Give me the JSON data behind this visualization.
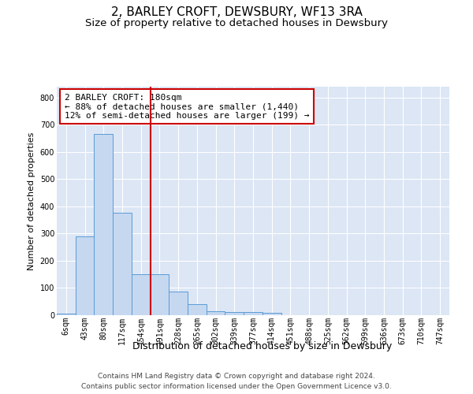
{
  "title": "2, BARLEY CROFT, DEWSBURY, WF13 3RA",
  "subtitle": "Size of property relative to detached houses in Dewsbury",
  "xlabel": "Distribution of detached houses by size in Dewsbury",
  "ylabel": "Number of detached properties",
  "bar_color": "#c5d8f0",
  "bar_edge_color": "#5b9bd5",
  "vline_color": "#cc0000",
  "vline_x": 4.5,
  "annotation_text": "2 BARLEY CROFT: 180sqm\n← 88% of detached houses are smaller (1,440)\n12% of semi-detached houses are larger (199) →",
  "annotation_box_color": "#ffffff",
  "annotation_box_edge": "#cc0000",
  "categories": [
    "6sqm",
    "43sqm",
    "80sqm",
    "117sqm",
    "154sqm",
    "191sqm",
    "228sqm",
    "265sqm",
    "302sqm",
    "339sqm",
    "377sqm",
    "414sqm",
    "451sqm",
    "488sqm",
    "525sqm",
    "562sqm",
    "599sqm",
    "636sqm",
    "673sqm",
    "710sqm",
    "747sqm"
  ],
  "values": [
    5,
    289,
    665,
    378,
    152,
    152,
    87,
    42,
    14,
    13,
    11,
    8,
    0,
    0,
    0,
    0,
    0,
    0,
    0,
    0,
    0
  ],
  "ylim": [
    0,
    840
  ],
  "yticks": [
    0,
    100,
    200,
    300,
    400,
    500,
    600,
    700,
    800
  ],
  "background_color": "#ffffff",
  "plot_bg_color": "#dce6f5",
  "grid_color": "#ffffff",
  "footer_line1": "Contains HM Land Registry data © Crown copyright and database right 2024.",
  "footer_line2": "Contains public sector information licensed under the Open Government Licence v3.0.",
  "title_fontsize": 11,
  "subtitle_fontsize": 9.5,
  "xlabel_fontsize": 9,
  "ylabel_fontsize": 8,
  "tick_fontsize": 7,
  "annot_fontsize": 8,
  "footer_fontsize": 6.5
}
